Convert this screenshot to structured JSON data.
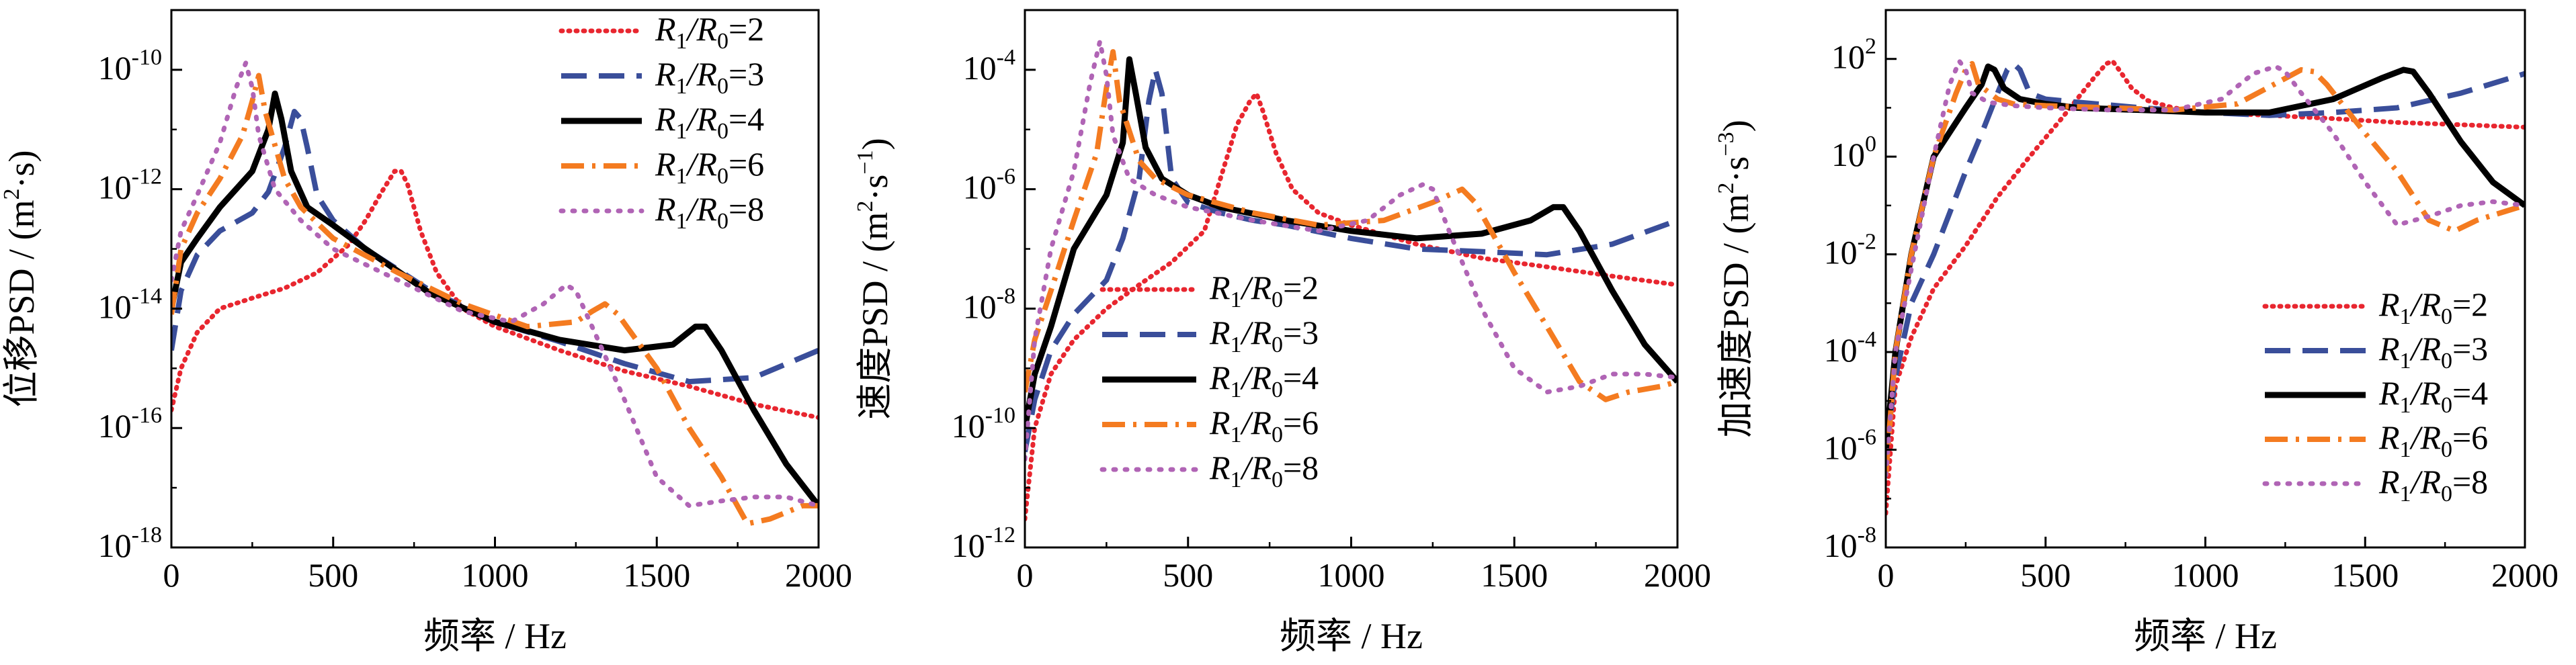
{
  "figure": {
    "x_label": "频率 / Hz",
    "x_ticks": [
      "0",
      "500",
      "1000",
      "1500",
      "2000"
    ],
    "legend_labels": [
      "R1/R0=2",
      "R1/R0=3",
      "R1/R0=4",
      "R1/R0=6",
      "R1/R0=8"
    ]
  },
  "colors": {
    "r2": "#e8262f",
    "r3": "#3a4e9a",
    "r4": "#000000",
    "r6": "#f47b20",
    "r8": "#b064b5"
  },
  "chart_data": [
    {
      "type": "line",
      "ylabel": "位移PSD / (m²·s)",
      "ylabel_main": "位移PSD / (m",
      "ylabel_unit": "·s)",
      "xlabel": "频率 / Hz",
      "xlim": [
        0,
        2000
      ],
      "ylim": [
        1e-18,
        1e-09
      ],
      "yscale": "log",
      "y_ticks": [
        1e-18,
        1e-16,
        1e-14,
        1e-12,
        1e-10
      ],
      "legend_position": "top-right",
      "series": [
        {
          "name": "R1/R0=2",
          "x": [
            0,
            30,
            80,
            150,
            250,
            350,
            450,
            550,
            600,
            650,
            690,
            710,
            730,
            770,
            820,
            900,
            1000,
            1200,
            1400,
            1600,
            1800,
            2000
          ],
          "y": [
            2e-16,
            1e-15,
            4e-15,
            1e-14,
            1.5e-14,
            2.2e-14,
            4e-14,
            1.2e-13,
            3e-13,
            9e-13,
            2e-12,
            2e-12,
            1.2e-12,
            2e-13,
            4e-14,
            1e-14,
            5e-15,
            2e-15,
            9e-16,
            5e-16,
            2.5e-16,
            1.5e-16
          ]
        },
        {
          "name": "R1/R0=3",
          "x": [
            0,
            30,
            80,
            150,
            250,
            300,
            350,
            380,
            400,
            420,
            450,
            500,
            600,
            700,
            800,
            1000,
            1200,
            1400,
            1600,
            1800,
            2000
          ],
          "y": [
            2e-15,
            2e-14,
            8e-14,
            2e-13,
            4e-13,
            9e-13,
            5e-12,
            2e-11,
            1.5e-11,
            5e-12,
            8e-13,
            3e-13,
            1e-13,
            4.5e-14,
            2e-14,
            6e-15,
            2.8e-15,
            1.2e-15,
            6e-16,
            7e-16,
            2e-15
          ]
        },
        {
          "name": "R1/R0=4",
          "x": [
            0,
            30,
            80,
            150,
            250,
            300,
            320,
            340,
            370,
            420,
            500,
            600,
            800,
            1000,
            1200,
            1400,
            1550,
            1620,
            1650,
            1700,
            1800,
            1900,
            2000
          ],
          "y": [
            1e-14,
            6e-14,
            1.5e-13,
            5e-13,
            2e-12,
            1e-11,
            4e-11,
            1.5e-11,
            2e-12,
            5e-13,
            2.5e-13,
            1e-13,
            1.8e-14,
            6e-15,
            3e-15,
            2e-15,
            2.5e-15,
            5e-15,
            5e-15,
            2e-15,
            2e-16,
            2.5e-17,
            5e-18
          ]
        },
        {
          "name": "R1/R0=6",
          "x": [
            0,
            30,
            80,
            150,
            220,
            250,
            270,
            290,
            350,
            400,
            500,
            700,
            900,
            1100,
            1250,
            1300,
            1340,
            1380,
            1500,
            1600,
            1700,
            1780,
            1850,
            1950,
            2000
          ],
          "y": [
            8e-15,
            1e-13,
            4e-13,
            1.5e-12,
            8e-12,
            3e-11,
            8e-11,
            2e-11,
            1.5e-12,
            5e-13,
            1.5e-13,
            4e-14,
            1.2e-14,
            5e-15,
            6e-15,
            9e-15,
            1.2e-14,
            8e-15,
            1e-15,
            1e-16,
            1.5e-17,
            2.5e-18,
            3e-18,
            5e-18,
            5e-18
          ]
        },
        {
          "name": "R1/R0=8",
          "x": [
            0,
            30,
            80,
            150,
            200,
            230,
            250,
            270,
            320,
            400,
            500,
            700,
            900,
            1050,
            1150,
            1220,
            1250,
            1300,
            1400,
            1500,
            1600,
            1700,
            1800,
            1900,
            2000
          ],
          "y": [
            3e-14,
            2e-13,
            8e-13,
            6e-12,
            5e-11,
            1.3e-10,
            5e-11,
            8e-12,
            1e-12,
            3e-13,
            1e-13,
            3e-14,
            9e-15,
            6e-15,
            1.2e-14,
            2.5e-14,
            2e-14,
            5e-15,
            3e-16,
            1.5e-17,
            5e-18,
            6e-18,
            7e-18,
            7e-18,
            5e-18
          ]
        }
      ]
    },
    {
      "type": "line",
      "ylabel": "速度PSD / (m²·s⁻¹)",
      "ylabel_main": "速度PSD / (m",
      "ylabel_unit": "·s",
      "ylabel_close": ")",
      "xlabel": "频率 / Hz",
      "xlim": [
        0,
        2000
      ],
      "ylim": [
        1e-12,
        0.001
      ],
      "yscale": "log",
      "y_ticks": [
        1e-12,
        1e-10,
        1e-08,
        1e-06,
        0.0001
      ],
      "legend_position": "center-left",
      "series": [
        {
          "name": "R1/R0=2",
          "x": [
            0,
            30,
            80,
            150,
            250,
            350,
            450,
            550,
            650,
            690,
            710,
            730,
            770,
            820,
            900,
            1000,
            1200,
            1400,
            1600,
            1800,
            2000
          ],
          "y": [
            3e-12,
            1e-10,
            8e-10,
            3e-09,
            1e-08,
            2.5e-08,
            6e-08,
            2e-07,
            1.2e-05,
            3e-05,
            4e-05,
            2e-05,
            4e-06,
            1e-06,
            4e-07,
            2.5e-07,
            1.2e-07,
            7e-08,
            5e-08,
            3.5e-08,
            2.5e-08
          ]
        },
        {
          "name": "R1/R0=3",
          "x": [
            0,
            30,
            80,
            150,
            250,
            300,
            350,
            380,
            400,
            420,
            450,
            500,
            600,
            700,
            800,
            1000,
            1200,
            1400,
            1600,
            1800,
            2000
          ],
          "y": [
            4e-11,
            3e-10,
            2e-09,
            8e-09,
            3e-08,
            1.5e-07,
            1.5e-06,
            3e-05,
            0.0001,
            4e-05,
            1.5e-06,
            6e-07,
            4e-07,
            3e-07,
            2.5e-07,
            1.5e-07,
            1e-07,
            9e-08,
            8e-08,
            1.2e-07,
            3e-07
          ]
        },
        {
          "name": "R1/R0=4",
          "x": [
            0,
            30,
            80,
            150,
            250,
            300,
            320,
            340,
            370,
            420,
            500,
            600,
            800,
            1000,
            1200,
            1400,
            1550,
            1620,
            1650,
            1700,
            1800,
            1900,
            2000
          ],
          "y": [
            1e-10,
            8e-10,
            5e-09,
            1e-07,
            8e-07,
            6e-06,
            0.00015,
            4e-05,
            5e-06,
            1.5e-06,
            8e-07,
            5e-07,
            3e-07,
            2e-07,
            1.5e-07,
            1.8e-07,
            3e-07,
            5e-07,
            5e-07,
            2e-07,
            2e-08,
            2.5e-09,
            6e-10
          ]
        },
        {
          "name": "R1/R0=6",
          "x": [
            0,
            30,
            80,
            150,
            220,
            250,
            270,
            290,
            350,
            400,
            500,
            700,
            900,
            1100,
            1250,
            1300,
            1340,
            1380,
            1500,
            1600,
            1700,
            1780,
            1850,
            1950,
            2000
          ],
          "y": [
            4e-10,
            3e-09,
            2e-08,
            3e-07,
            4e-06,
            5e-05,
            0.0002,
            3e-05,
            3e-06,
            1.5e-06,
            8e-07,
            4e-07,
            2.5e-07,
            3e-07,
            6e-07,
            8e-07,
            1e-06,
            6e-07,
            4e-08,
            5e-09,
            6e-10,
            3e-10,
            4e-10,
            5e-10,
            6e-10
          ]
        },
        {
          "name": "R1/R0=8",
          "x": [
            0,
            30,
            80,
            150,
            200,
            230,
            250,
            270,
            320,
            400,
            500,
            700,
            900,
            1050,
            1150,
            1220,
            1250,
            1300,
            1400,
            1500,
            1600,
            1700,
            1800,
            1900,
            2000
          ],
          "y": [
            3e-11,
            3e-09,
            1e-07,
            2e-06,
            6e-05,
            0.0003,
            8e-05,
            8e-06,
            1.5e-06,
            8e-07,
            5e-07,
            3e-07,
            2e-07,
            3e-07,
            8e-07,
            1.2e-06,
            1e-06,
            2e-07,
            1e-08,
            1e-09,
            4e-10,
            5e-10,
            8e-10,
            8e-10,
            7e-10
          ]
        }
      ]
    },
    {
      "type": "line",
      "ylabel": "加速度PSD / (m²·s⁻³)",
      "ylabel_main": "加速度PSD / (m",
      "ylabel_unit": "·s",
      "ylabel_close": ")",
      "xlabel": "频率 / Hz",
      "xlim": [
        0,
        2000
      ],
      "ylim": [
        1e-08,
        1000.0
      ],
      "yscale": "log",
      "y_ticks": [
        1e-08,
        1e-06,
        0.0001,
        0.01,
        1,
        100
      ],
      "legend_position": "bottom-right",
      "series": [
        {
          "name": "R1/R0=2",
          "x": [
            0,
            30,
            80,
            150,
            250,
            350,
            450,
            550,
            650,
            690,
            710,
            730,
            770,
            820,
            900,
            1000,
            1200,
            1400,
            1600,
            1800,
            2000
          ],
          "y": [
            5e-08,
            2e-05,
            0.0002,
            0.002,
            0.015,
            0.15,
            1,
            6,
            40,
            80,
            90,
            60,
            25,
            14,
            10,
            8,
            7,
            6,
            5,
            4.5,
            4
          ]
        },
        {
          "name": "R1/R0=3",
          "x": [
            0,
            30,
            80,
            150,
            250,
            300,
            350,
            380,
            400,
            420,
            450,
            500,
            600,
            800,
            1000,
            1200,
            1400,
            1600,
            1800,
            2000
          ],
          "y": [
            1e-06,
            3e-05,
            0.001,
            0.01,
            0.5,
            3,
            20,
            60,
            80,
            60,
            20,
            15,
            13,
            10,
            8,
            7,
            8,
            10,
            20,
            50
          ]
        },
        {
          "name": "R1/R0=4",
          "x": [
            0,
            30,
            80,
            150,
            250,
            300,
            320,
            340,
            370,
            420,
            500,
            600,
            800,
            1000,
            1200,
            1400,
            1550,
            1620,
            1650,
            1700,
            1800,
            1900,
            2000
          ],
          "y": [
            1e-06,
            0.0001,
            0.01,
            1,
            10,
            30,
            70,
            60,
            25,
            15,
            12,
            10,
            9,
            8,
            8,
            15,
            40,
            60,
            55,
            20,
            2,
            0.3,
            0.1
          ]
        },
        {
          "name": "R1/R0=6",
          "x": [
            0,
            30,
            80,
            150,
            220,
            250,
            270,
            290,
            350,
            400,
            500,
            700,
            900,
            1100,
            1250,
            1300,
            1340,
            1380,
            1500,
            1600,
            1700,
            1780,
            1850,
            1950,
            2000
          ],
          "y": [
            3e-07,
            0.0001,
            0.01,
            1,
            20,
            60,
            80,
            30,
            15,
            12,
            11,
            10,
            9,
            12,
            40,
            60,
            55,
            30,
            3,
            0.5,
            0.05,
            0.03,
            0.05,
            0.08,
            0.1
          ]
        },
        {
          "name": "R1/R0=8",
          "x": [
            0,
            30,
            80,
            150,
            200,
            230,
            250,
            270,
            320,
            400,
            500,
            700,
            900,
            1050,
            1150,
            1220,
            1250,
            1300,
            1400,
            1500,
            1600,
            1700,
            1800,
            1900,
            2000
          ],
          "y": [
            3e-07,
            0.0001,
            0.005,
            1,
            30,
            90,
            60,
            20,
            13,
            11,
            10,
            9,
            9,
            15,
            50,
            70,
            55,
            20,
            3,
            0.3,
            0.04,
            0.06,
            0.1,
            0.12,
            0.1
          ]
        }
      ]
    }
  ]
}
